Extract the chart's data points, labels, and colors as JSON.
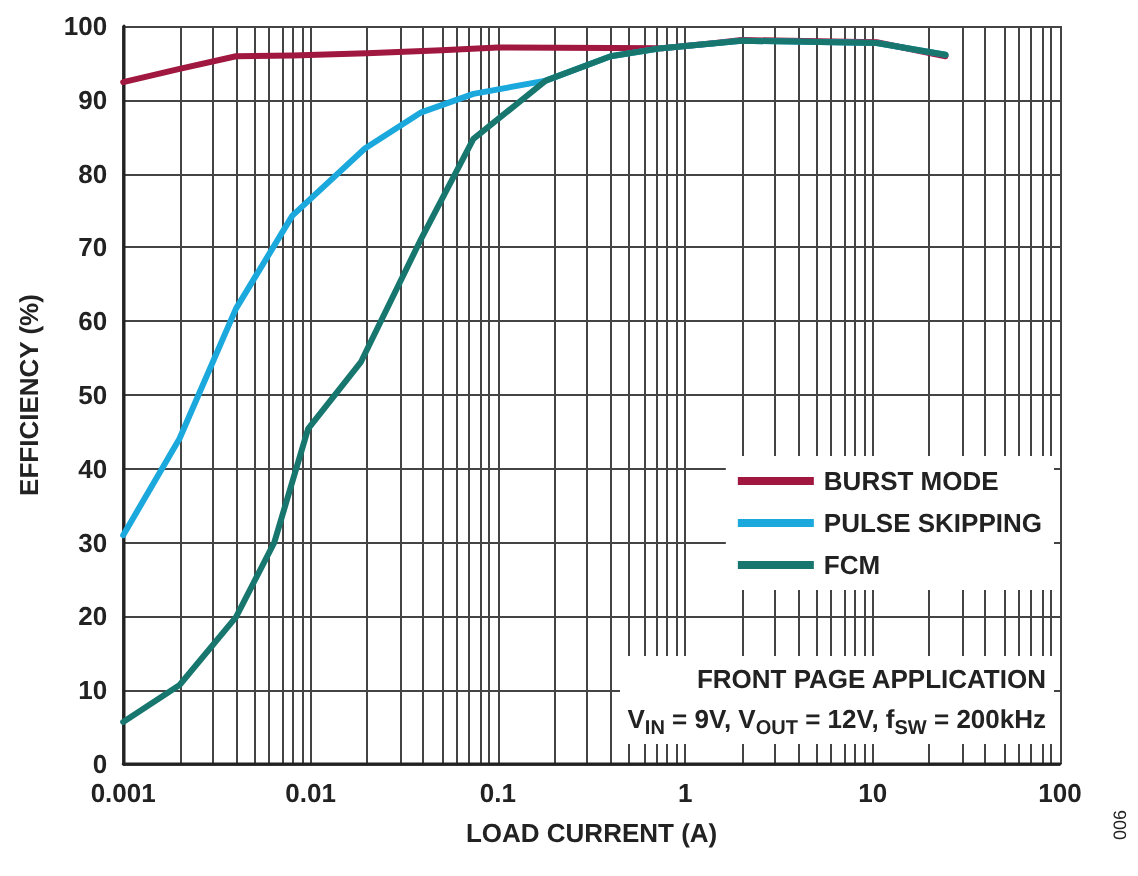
{
  "chart_data": {
    "type": "line",
    "xlabel": "LOAD CURRENT (A)",
    "ylabel": "EFFICIENCY (%)",
    "log": "x",
    "grid": true,
    "legend": "right",
    "marker": "none",
    "line_style": "solid",
    "xlim": [
      0.001,
      100
    ],
    "ylim": [
      0,
      100
    ],
    "xticks": [
      0.001,
      {
        "value": 0.002,
        "label": null
      },
      {
        "value": 0.003,
        "label": null
      },
      {
        "value": 0.004,
        "label": null
      },
      {
        "value": 0.005,
        "label": null
      },
      {
        "value": 0.006,
        "label": null
      },
      {
        "value": 0.007,
        "label": null
      },
      {
        "value": 0.008,
        "label": null
      },
      {
        "value": 0.009,
        "label": null
      },
      0.01,
      {
        "value": 0.02,
        "label": null
      },
      {
        "value": 0.03,
        "label": null
      },
      {
        "value": 0.04,
        "label": null
      },
      {
        "value": 0.05,
        "label": null
      },
      {
        "value": 0.06,
        "label": null
      },
      {
        "value": 0.07,
        "label": null
      },
      {
        "value": 0.08,
        "label": null
      },
      {
        "value": 0.09,
        "label": null
      },
      0.1,
      {
        "value": 0.2,
        "label": null
      },
      {
        "value": 0.3,
        "label": null
      },
      {
        "value": 0.4,
        "label": null
      },
      {
        "value": 0.5,
        "label": null
      },
      {
        "value": 0.6,
        "label": null
      },
      {
        "value": 0.7,
        "label": null
      },
      {
        "value": 0.8,
        "label": null
      },
      {
        "value": 0.9,
        "label": null
      },
      1,
      {
        "value": 2,
        "label": null
      },
      {
        "value": 3,
        "label": null
      },
      {
        "value": 4,
        "label": null
      },
      {
        "value": 5,
        "label": null
      },
      {
        "value": 6,
        "label": null
      },
      {
        "value": 7,
        "label": null
      },
      {
        "value": 8,
        "label": null
      },
      {
        "value": 9,
        "label": null
      },
      10,
      {
        "value": 20,
        "label": null
      },
      {
        "value": 30,
        "label": null
      },
      {
        "value": 40,
        "label": null
      },
      {
        "value": 50,
        "label": null
      },
      {
        "value": 60,
        "label": null
      },
      {
        "value": 70,
        "label": null
      },
      {
        "value": 80,
        "label": null
      },
      {
        "value": 90,
        "label": null
      },
      100
    ],
    "yticks": [
      0,
      10,
      20,
      30,
      40,
      50,
      60,
      70,
      80,
      90,
      100
    ],
    "series": [
      {
        "name": "BURST MODE",
        "color": "#a0173f",
        "x": [
          0.001,
          0.002,
          0.004,
          0.008,
          0.02,
          0.05,
          0.1,
          0.75,
          1.45,
          2,
          10.5,
          24.5
        ],
        "values": [
          92.4,
          94.2,
          95.9,
          96,
          96.3,
          96.7,
          97.1,
          97,
          97.7,
          98.1,
          97.8,
          95.9
        ]
      },
      {
        "name": "PULSE SKIPPING",
        "color": "#1ba9dd",
        "x": [
          0.001,
          0.002,
          0.004,
          0.008,
          0.0195,
          0.039,
          0.074,
          0.18,
          0.4,
          0.75,
          2,
          10.5,
          24.5
        ],
        "values": [
          31,
          44.1,
          61.7,
          74.3,
          83.4,
          88.3,
          90.8,
          92.6,
          95.9,
          97,
          98,
          97.7,
          96.1
        ]
      },
      {
        "name": "FCM",
        "color": "#17776f",
        "x": [
          0.001,
          0.002,
          0.004,
          0.0064,
          0.0097,
          0.0186,
          0.039,
          0.074,
          0.18,
          0.4,
          0.75,
          2,
          10.5,
          24.5
        ],
        "values": [
          5.7,
          10.7,
          19.9,
          30,
          45.4,
          54.5,
          71.2,
          84.7,
          92.6,
          95.9,
          97,
          98,
          97.7,
          96.1
        ]
      }
    ],
    "annotations": [
      "FRONT PAGE APPLICATION",
      "V$_{IN}$ = 9V, V$_{OUT}$ = 12V, f$_{SW}$ = 200kHz",
      "006"
    ]
  }
}
